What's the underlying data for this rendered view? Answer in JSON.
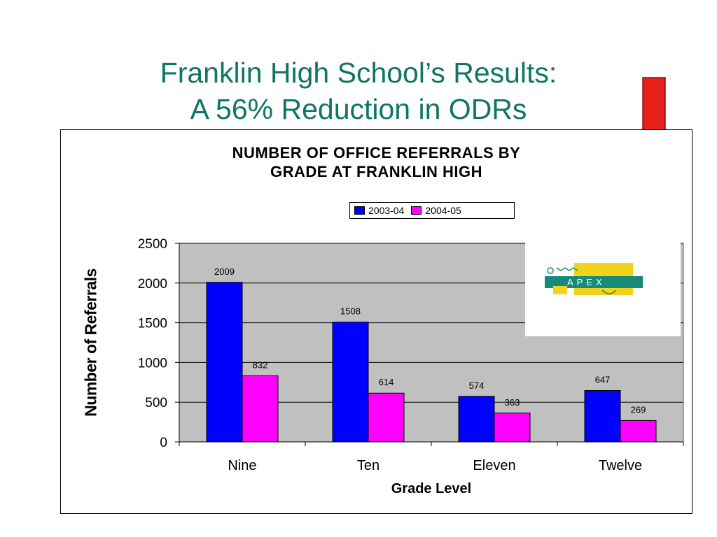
{
  "slide": {
    "title_line1": "Franklin High School’s Results:",
    "title_line2": "A 56% Reduction in ODRs"
  },
  "logo": {
    "text": "APEX"
  },
  "colors": {
    "title": "#0f7565",
    "arrow": "#e8201c",
    "plot_bg": "#c0c0c0"
  },
  "chart_data": {
    "type": "bar",
    "title_line1": "NUMBER OF OFFICE REFERRALS BY",
    "title_line2": "GRADE AT FRANKLIN HIGH",
    "categories": [
      "Nine",
      "Ten",
      "Eleven",
      "Twelve"
    ],
    "series": [
      {
        "name": "2003-04",
        "values": [
          2009,
          1508,
          574,
          647
        ],
        "color": "#0000ff"
      },
      {
        "name": "2004-05",
        "values": [
          832,
          614,
          363,
          269
        ],
        "color": "#ff00ff"
      }
    ],
    "xlabel": "Grade Level",
    "ylabel": "Number of Referrals",
    "ylim": [
      0,
      2500
    ],
    "yticks": [
      0,
      500,
      1000,
      1500,
      2000,
      2500
    ],
    "grid": true,
    "legend_position": "top-right"
  }
}
